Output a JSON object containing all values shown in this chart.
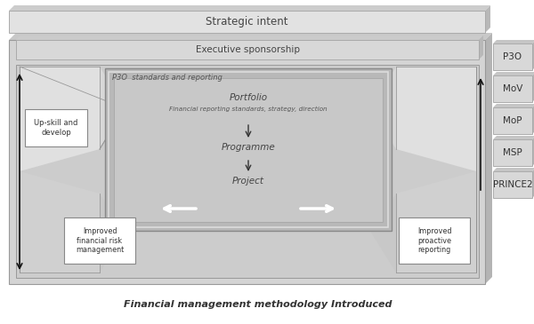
{
  "white": "#ffffff",
  "bg": "#f5f5f5",
  "light_gray": "#d8d8d8",
  "mid_gray": "#c0c0c0",
  "dark_gray": "#a8a8a8",
  "very_light_gray": "#ebebeb",
  "inner_gray": "#c8c8c8",
  "strategic_intent": "Strategic intent",
  "executive_sponsorship": "Executive sponsorship",
  "p3o_label": "P3O  standards and reporting",
  "portfolio_label": "Portfolio",
  "portfolio_sub": "Financial reporting standards, strategy, direction",
  "programme_label": "Programme",
  "project_label": "Project",
  "upskill_label": "Up-skill and\ndevelop",
  "improved_risk_label": "Improved\nfinancial risk\nmanagement",
  "improved_reporting_label": "Improved\nproactive\nreporting",
  "bottom_label": "Financial management methodology Introduced",
  "right_labels": [
    "P3O",
    "MoV",
    "MoP",
    "MSP",
    "PRINCE2"
  ],
  "title_fontsize": 8.5,
  "small_fontsize": 6,
  "label_fontsize": 7.5,
  "fs_body": 7
}
